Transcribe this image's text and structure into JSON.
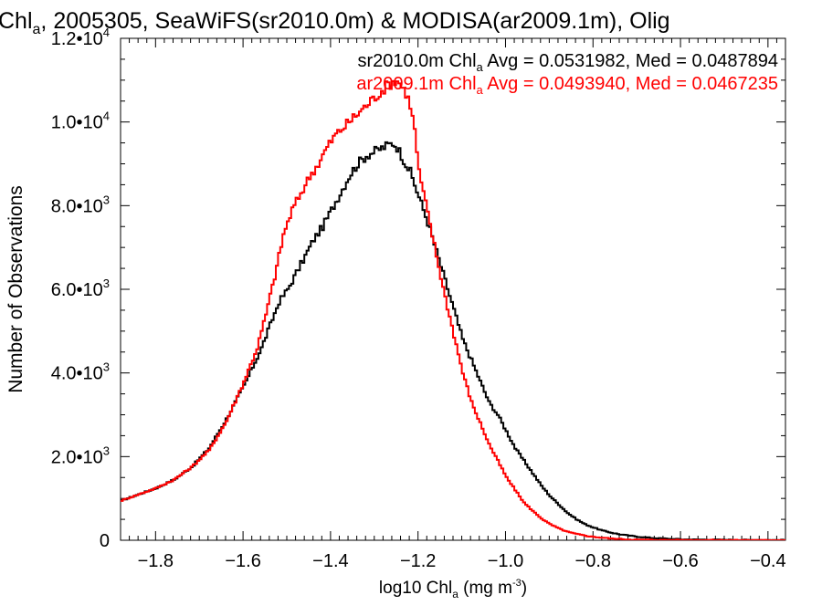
{
  "chart_data": {
    "type": "line",
    "title_prefix": "Chl",
    "title_sub": "a",
    "title_rest": ", 2005305, SeaWiFS(sr2010.0m) & MODISA(ar2009.1m), Olig",
    "xlabel_prefix": "log10 Chl",
    "xlabel_sub": "a",
    "xlabel_units": " (mg m",
    "xlabel_sup": "-3",
    "xlabel_close": ")",
    "ylabel": "Number of Observations",
    "xlim": [
      -1.88,
      -0.36
    ],
    "ylim": [
      0,
      12000
    ],
    "x_ticks": [
      -1.8,
      -1.6,
      -1.4,
      -1.2,
      -1.0,
      -0.8,
      -0.6,
      -0.4
    ],
    "x_tick_labels": [
      "−1.8",
      "−1.6",
      "−1.4",
      "−1.2",
      "−1.0",
      "−0.8",
      "−0.6",
      "−0.4"
    ],
    "y_ticks": [
      0,
      2000,
      4000,
      6000,
      8000,
      10000,
      12000
    ],
    "y_tick_mantissas": [
      "0",
      "2.0•10",
      "4.0•10",
      "6.0•10",
      "8.0•10",
      "1.0•10",
      "1.2•10"
    ],
    "y_tick_exponents": [
      "",
      "3",
      "3",
      "3",
      "3",
      "4",
      "4"
    ],
    "annotations": [
      {
        "prefix": "sr2010.0m Chl",
        "sub": "a",
        "rest": " Avg = 0.0531982, Med = 0.0487894",
        "color": "#000000"
      },
      {
        "prefix": "ar2009.1m Chl",
        "sub": "a",
        "rest": " Avg = 0.0493940, Med = 0.0467235",
        "color": "#ff0000"
      }
    ],
    "series": [
      {
        "color": "#000000",
        "x": [
          -1.88,
          -1.84,
          -1.8,
          -1.76,
          -1.72,
          -1.68,
          -1.64,
          -1.6,
          -1.56,
          -1.52,
          -1.5,
          -1.48,
          -1.46,
          -1.44,
          -1.42,
          -1.4,
          -1.38,
          -1.36,
          -1.34,
          -1.32,
          -1.3,
          -1.28,
          -1.26,
          -1.25,
          -1.24,
          -1.22,
          -1.2,
          -1.18,
          -1.16,
          -1.14,
          -1.12,
          -1.1,
          -1.08,
          -1.06,
          -1.04,
          -1.02,
          -1.0,
          -0.98,
          -0.96,
          -0.94,
          -0.92,
          -0.9,
          -0.88,
          -0.86,
          -0.84,
          -0.82,
          -0.8,
          -0.78,
          -0.76,
          -0.74,
          -0.72,
          -0.7,
          -0.68,
          -0.66,
          -0.64,
          -0.62,
          -0.6,
          -0.56,
          -0.5,
          -0.45,
          -0.4,
          -0.36
        ],
        "y": [
          950,
          1100,
          1250,
          1450,
          1750,
          2200,
          2900,
          3700,
          4600,
          5700,
          6000,
          6400,
          6800,
          7200,
          7500,
          7900,
          8300,
          8700,
          9000,
          9200,
          9300,
          9400,
          9500,
          9400,
          9200,
          8800,
          8200,
          7600,
          6900,
          6200,
          5500,
          4800,
          4300,
          3800,
          3300,
          3000,
          2600,
          2200,
          1900,
          1600,
          1300,
          1050,
          850,
          650,
          500,
          380,
          300,
          230,
          180,
          140,
          110,
          85,
          65,
          50,
          40,
          30,
          22,
          15,
          10,
          6,
          4,
          3
        ]
      },
      {
        "color": "#ff0000",
        "x": [
          -1.88,
          -1.84,
          -1.8,
          -1.76,
          -1.72,
          -1.68,
          -1.64,
          -1.6,
          -1.57,
          -1.55,
          -1.53,
          -1.51,
          -1.49,
          -1.47,
          -1.45,
          -1.43,
          -1.41,
          -1.39,
          -1.37,
          -1.35,
          -1.33,
          -1.31,
          -1.29,
          -1.27,
          -1.25,
          -1.23,
          -1.22,
          -1.21,
          -1.2,
          -1.18,
          -1.16,
          -1.14,
          -1.12,
          -1.1,
          -1.08,
          -1.06,
          -1.04,
          -1.02,
          -1.0,
          -0.98,
          -0.96,
          -0.94,
          -0.92,
          -0.9,
          -0.88,
          -0.86,
          -0.84,
          -0.82,
          -0.8,
          -0.78,
          -0.76,
          -0.74,
          -0.72,
          -0.7,
          -0.68,
          -0.64,
          -0.6,
          -0.5,
          -0.4,
          -0.36
        ],
        "y": [
          950,
          1100,
          1250,
          1450,
          1750,
          2150,
          2850,
          3800,
          4600,
          5400,
          6300,
          7300,
          7900,
          8300,
          8700,
          9000,
          9400,
          9700,
          9900,
          10100,
          10300,
          10500,
          10700,
          10900,
          11000,
          10700,
          10400,
          9800,
          8800,
          7800,
          6800,
          5800,
          4900,
          4000,
          3300,
          2800,
          2300,
          1900,
          1500,
          1200,
          900,
          700,
          520,
          380,
          280,
          200,
          150,
          110,
          80,
          60,
          40,
          30,
          20,
          14,
          10,
          6,
          4,
          2,
          1,
          1
        ]
      }
    ]
  }
}
